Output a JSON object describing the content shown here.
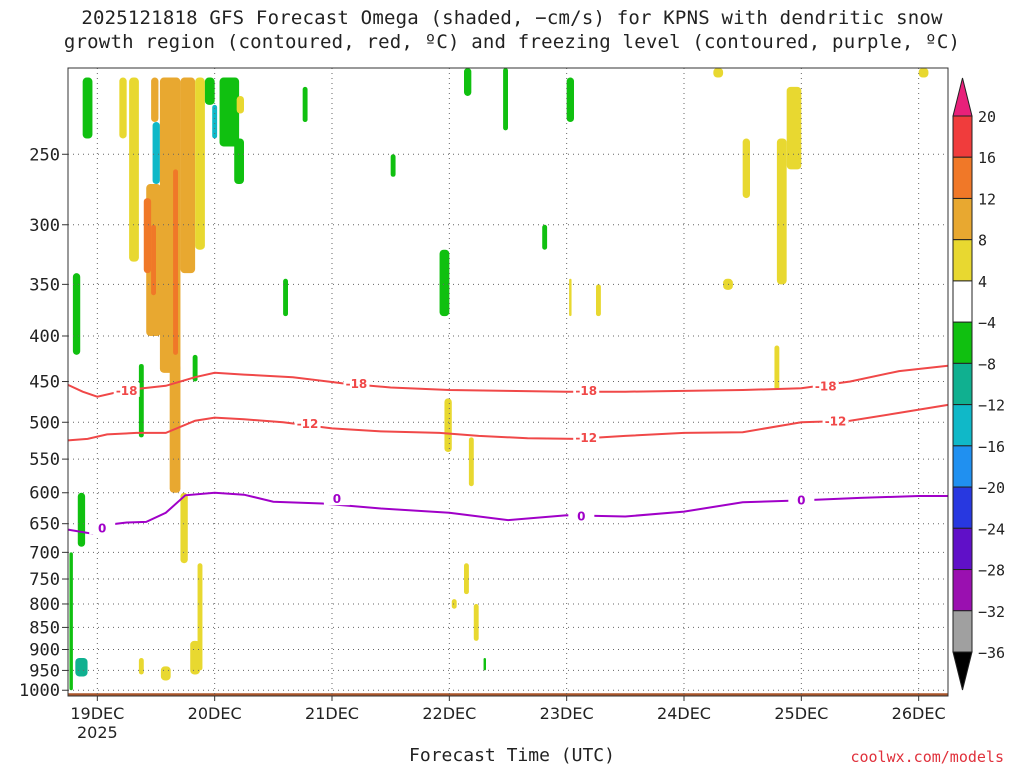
{
  "title": {
    "line1": "2025121818 GFS Forecast Omega (shaded, −cm/s) for KPNS with dendritic snow",
    "line2": "growth region (contoured, red, ºC) and freezing level (contoured, purple, ºC)"
  },
  "credit": "coolwx.com/models",
  "colors": {
    "ground": "#a9552a",
    "dsg_contour": "#f04848",
    "freezing_contour": "#a000c8",
    "grid": "#666666"
  },
  "chart_data": {
    "type": "heatmap",
    "xlabel": "Forecast Time (UTC)",
    "ylabel": "",
    "x_ticks": [
      {
        "label": "19DEC",
        "sub": "2025",
        "t": 6
      },
      {
        "label": "20DEC",
        "sub": "",
        "t": 30
      },
      {
        "label": "21DEC",
        "sub": "",
        "t": 54
      },
      {
        "label": "22DEC",
        "sub": "",
        "t": 78
      },
      {
        "label": "23DEC",
        "sub": "",
        "t": 102
      },
      {
        "label": "24DEC",
        "sub": "",
        "t": 126
      },
      {
        "label": "25DEC",
        "sub": "",
        "t": 150
      },
      {
        "label": "26DEC",
        "sub": "",
        "t": 174
      }
    ],
    "xlim": [
      0,
      180
    ],
    "y_ticks": [
      250,
      300,
      350,
      400,
      450,
      500,
      550,
      600,
      650,
      700,
      750,
      800,
      850,
      900,
      950,
      1000
    ],
    "ylim": [
      200,
      1015
    ],
    "y_scale": "log",
    "grid": true,
    "colorbar": {
      "labels": [
        "20",
        "16",
        "12",
        "8",
        "4",
        "−4",
        "−8",
        "−12",
        "−16",
        "−20",
        "−24",
        "−28",
        "−32",
        "−36"
      ],
      "colors": [
        "#e8207a",
        "#f03c3c",
        "#f07828",
        "#e8a830",
        "#e8d830",
        "#ffffff",
        "#10c010",
        "#10b090",
        "#10b8c8",
        "#2090f0",
        "#2838e0",
        "#6010c8",
        "#9a10b0",
        "#a0a0a0",
        "#000000"
      ]
    },
    "contours": [
      {
        "label": "-18",
        "color": "#f04848",
        "points": [
          [
            0,
            454
          ],
          [
            3,
            462
          ],
          [
            6,
            468
          ],
          [
            12,
            460
          ],
          [
            20,
            455
          ],
          [
            26,
            445
          ],
          [
            30,
            440
          ],
          [
            36,
            442
          ],
          [
            46,
            445
          ],
          [
            56,
            452
          ],
          [
            66,
            457
          ],
          [
            78,
            460
          ],
          [
            90,
            461
          ],
          [
            102,
            462
          ],
          [
            114,
            462
          ],
          [
            126,
            461
          ],
          [
            138,
            460
          ],
          [
            150,
            458
          ],
          [
            160,
            450
          ],
          [
            170,
            438
          ],
          [
            180,
            432
          ]
        ],
        "labels_at": [
          [
            12,
            461
          ],
          [
            59,
            453
          ],
          [
            106,
            461
          ],
          [
            155,
            456
          ]
        ]
      },
      {
        "label": "-12",
        "color": "#f04848",
        "points": [
          [
            0,
            524
          ],
          [
            4,
            522
          ],
          [
            8,
            516
          ],
          [
            14,
            514
          ],
          [
            20,
            514
          ],
          [
            26,
            498
          ],
          [
            30,
            494
          ],
          [
            36,
            496
          ],
          [
            44,
            500
          ],
          [
            54,
            508
          ],
          [
            64,
            512
          ],
          [
            76,
            514
          ],
          [
            84,
            518
          ],
          [
            94,
            521
          ],
          [
            104,
            522
          ],
          [
            114,
            518
          ],
          [
            126,
            514
          ],
          [
            138,
            513
          ],
          [
            150,
            500
          ],
          [
            160,
            498
          ],
          [
            170,
            488
          ],
          [
            180,
            478
          ]
        ],
        "labels_at": [
          [
            49,
            502
          ],
          [
            106,
            521
          ],
          [
            157,
            499
          ]
        ]
      },
      {
        "label": "0",
        "color": "#a000c8",
        "points": [
          [
            0,
            660
          ],
          [
            5,
            667
          ],
          [
            8,
            652
          ],
          [
            12,
            648
          ],
          [
            16,
            647
          ],
          [
            20,
            632
          ],
          [
            24,
            604
          ],
          [
            30,
            600
          ],
          [
            36,
            603
          ],
          [
            42,
            614
          ],
          [
            52,
            617
          ],
          [
            64,
            625
          ],
          [
            78,
            632
          ],
          [
            90,
            644
          ],
          [
            102,
            636
          ],
          [
            114,
            638
          ],
          [
            126,
            630
          ],
          [
            138,
            615
          ],
          [
            150,
            612
          ],
          [
            162,
            608
          ],
          [
            174,
            605
          ],
          [
            180,
            605
          ]
        ],
        "labels_at": [
          [
            7,
            658
          ],
          [
            55,
            610
          ],
          [
            105,
            638
          ],
          [
            150,
            612
          ]
        ]
      }
    ],
    "omega_cells": [
      {
        "t": [
          10.5,
          12
        ],
        "p": [
          205,
          240
        ],
        "v": 6
      },
      {
        "t": [
          12.5,
          14.5
        ],
        "p": [
          205,
          330
        ],
        "v": 5
      },
      {
        "t": [
          17,
          18.5
        ],
        "p": [
          205,
          230
        ],
        "v": 8
      },
      {
        "t": [
          17.3,
          18.8
        ],
        "p": [
          230,
          270
        ],
        "v": -15
      },
      {
        "t": [
          16,
          19
        ],
        "p": [
          270,
          400
        ],
        "v": 9
      },
      {
        "t": [
          15.5,
          17
        ],
        "p": [
          280,
          340
        ],
        "v": 14
      },
      {
        "t": [
          17,
          18
        ],
        "p": [
          300,
          360
        ],
        "v": 15
      },
      {
        "t": [
          18.8,
          23
        ],
        "p": [
          205,
          440
        ],
        "v": 10
      },
      {
        "t": [
          21.5,
          22.5
        ],
        "p": [
          260,
          420
        ],
        "v": 13
      },
      {
        "t": [
          20.8,
          23
        ],
        "p": [
          430,
          600
        ],
        "v": 10
      },
      {
        "t": [
          23,
          26
        ],
        "p": [
          205,
          340
        ],
        "v": 9
      },
      {
        "t": [
          26,
          28
        ],
        "p": [
          205,
          320
        ],
        "v": 6
      },
      {
        "t": [
          23,
          24.5
        ],
        "p": [
          600,
          720
        ],
        "v": 6
      },
      {
        "t": [
          26.5,
          27.5
        ],
        "p": [
          720,
          950
        ],
        "v": 5
      },
      {
        "t": [
          25,
          27
        ],
        "p": [
          880,
          960
        ],
        "v": 5
      },
      {
        "t": [
          19,
          21
        ],
        "p": [
          940,
          975
        ],
        "v": 6
      },
      {
        "t": [
          14.5,
          15.5
        ],
        "p": [
          920,
          960
        ],
        "v": 5
      },
      {
        "t": [
          3,
          5
        ],
        "p": [
          205,
          240
        ],
        "v": -7
      },
      {
        "t": [
          1,
          2.5
        ],
        "p": [
          340,
          420
        ],
        "v": -7
      },
      {
        "t": [
          2,
          3.5
        ],
        "p": [
          600,
          690
        ],
        "v": -7
      },
      {
        "t": [
          1.5,
          4
        ],
        "p": [
          920,
          965
        ],
        "v": -8
      },
      {
        "t": [
          0.3,
          1
        ],
        "p": [
          700,
          1000
        ],
        "v": -7
      },
      {
        "t": [
          28,
          30
        ],
        "p": [
          205,
          220
        ],
        "v": -7
      },
      {
        "t": [
          31,
          35
        ],
        "p": [
          205,
          245
        ],
        "v": -6
      },
      {
        "t": [
          29.5,
          30.5
        ],
        "p": [
          220,
          240
        ],
        "v": -14
      },
      {
        "t": [
          34,
          36
        ],
        "p": [
          240,
          270
        ],
        "v": -6
      },
      {
        "t": [
          25.5,
          26.5
        ],
        "p": [
          420,
          450
        ],
        "v": -7
      },
      {
        "t": [
          34.5,
          36
        ],
        "p": [
          215,
          225
        ],
        "v": 6
      },
      {
        "t": [
          14.5,
          15.5
        ],
        "p": [
          430,
          520
        ],
        "v": -7
      },
      {
        "t": [
          44,
          45
        ],
        "p": [
          345,
          380
        ],
        "v": -7
      },
      {
        "t": [
          48,
          49
        ],
        "p": [
          210,
          230
        ],
        "v": -7
      },
      {
        "t": [
          66,
          67
        ],
        "p": [
          250,
          265
        ],
        "v": -6
      },
      {
        "t": [
          76,
          78
        ],
        "p": [
          320,
          380
        ],
        "v": -7
      },
      {
        "t": [
          77,
          78.5
        ],
        "p": [
          470,
          540
        ],
        "v": 6
      },
      {
        "t": [
          81,
          82.5
        ],
        "p": [
          200,
          215
        ],
        "v": -7
      },
      {
        "t": [
          89,
          90
        ],
        "p": [
          200,
          235
        ],
        "v": -7
      },
      {
        "t": [
          97,
          98
        ],
        "p": [
          300,
          320
        ],
        "v": -7
      },
      {
        "t": [
          82,
          83
        ],
        "p": [
          520,
          590
        ],
        "v": 6
      },
      {
        "t": [
          83,
          84
        ],
        "p": [
          800,
          880
        ],
        "v": 6
      },
      {
        "t": [
          81,
          82
        ],
        "p": [
          720,
          780
        ],
        "v": 6
      },
      {
        "t": [
          78.5,
          79.5
        ],
        "p": [
          790,
          810
        ],
        "v": 6
      },
      {
        "t": [
          85,
          85.5
        ],
        "p": [
          920,
          950
        ],
        "v": -7
      },
      {
        "t": [
          102.5,
          103
        ],
        "p": [
          345,
          380
        ],
        "v": 5
      },
      {
        "t": [
          108,
          109
        ],
        "p": [
          350,
          380
        ],
        "v": 5
      },
      {
        "t": [
          102,
          103.5
        ],
        "p": [
          205,
          230
        ],
        "v": -7
      },
      {
        "t": [
          138,
          139.5
        ],
        "p": [
          240,
          280
        ],
        "v": 6
      },
      {
        "t": [
          132,
          134
        ],
        "p": [
          200,
          205
        ],
        "v": 5
      },
      {
        "t": [
          145,
          147
        ],
        "p": [
          240,
          350
        ],
        "v": 6
      },
      {
        "t": [
          147,
          150
        ],
        "p": [
          210,
          260
        ],
        "v": 6
      },
      {
        "t": [
          134,
          136
        ],
        "p": [
          345,
          355
        ],
        "v": 6
      },
      {
        "t": [
          144.5,
          145.5
        ],
        "p": [
          410,
          460
        ],
        "v": 6
      },
      {
        "t": [
          174,
          176
        ],
        "p": [
          200,
          205
        ],
        "v": 5
      }
    ]
  }
}
